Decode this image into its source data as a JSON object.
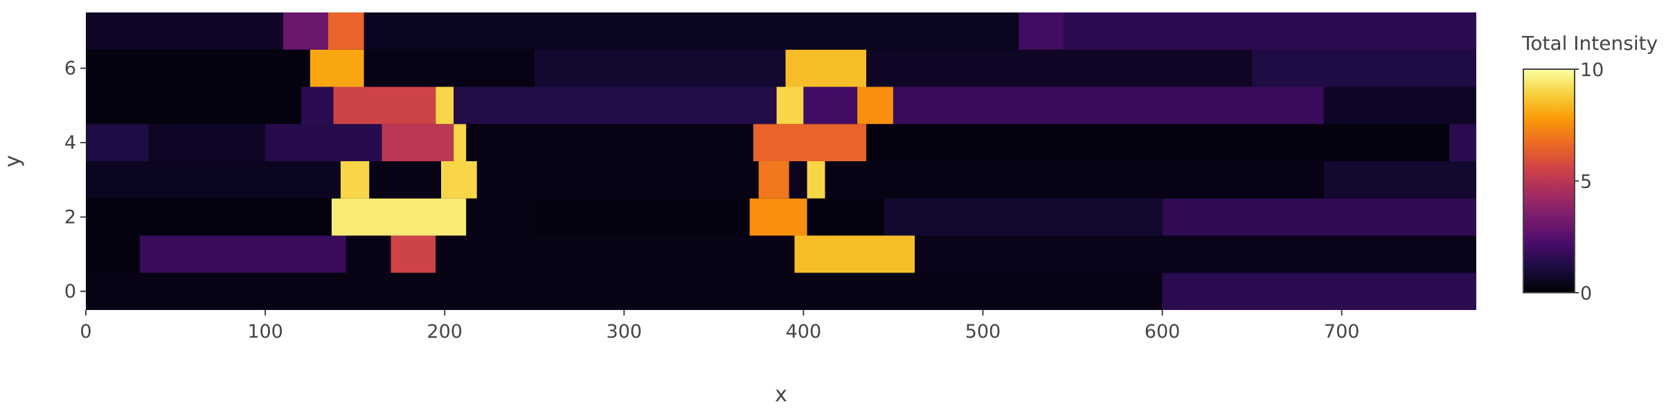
{
  "chart_data": {
    "type": "heatmap",
    "title": "",
    "xlabel": "x",
    "ylabel": "y",
    "xlim": [
      0,
      775
    ],
    "ylim": [
      -0.5,
      7.5
    ],
    "x_ticks": [
      0,
      100,
      200,
      300,
      400,
      500,
      600,
      700
    ],
    "y_ticks": [
      0,
      2,
      4,
      6
    ],
    "colorbar": {
      "title": "Total Intensity",
      "min": 0,
      "max": 10,
      "ticks": [
        0,
        5,
        10
      ]
    },
    "colorscale": [
      "#000004",
      "#1b0c41",
      "#4a0c6b",
      "#781c6d",
      "#a52c60",
      "#cf4446",
      "#ed6925",
      "#fb9b06",
      "#f7d13d",
      "#fcffa4"
    ],
    "rows": [
      {
        "y": 0,
        "segments": [
          [
            0,
            600,
            0.3
          ],
          [
            600,
            775,
            1.5
          ]
        ]
      },
      {
        "y": 1,
        "segments": [
          [
            0,
            30,
            0.2
          ],
          [
            30,
            145,
            1.8
          ],
          [
            145,
            170,
            0.3
          ],
          [
            170,
            195,
            5.5
          ],
          [
            195,
            395,
            0.3
          ],
          [
            395,
            462,
            8.5
          ],
          [
            462,
            775,
            0.4
          ]
        ]
      },
      {
        "y": 2,
        "segments": [
          [
            0,
            137,
            0.2
          ],
          [
            137,
            212,
            9.5
          ],
          [
            212,
            250,
            0.3
          ],
          [
            250,
            370,
            0.2
          ],
          [
            370,
            402,
            7.5
          ],
          [
            402,
            445,
            0.2
          ],
          [
            445,
            600,
            0.8
          ],
          [
            600,
            775,
            1.6
          ]
        ]
      },
      {
        "y": 3,
        "segments": [
          [
            0,
            142,
            0.5
          ],
          [
            142,
            158,
            9.0
          ],
          [
            158,
            198,
            0.3
          ],
          [
            198,
            218,
            9.0
          ],
          [
            218,
            375,
            0.3
          ],
          [
            375,
            392,
            7.0
          ],
          [
            392,
            402,
            0.5
          ],
          [
            402,
            412,
            9.0
          ],
          [
            412,
            690,
            0.3
          ],
          [
            690,
            775,
            0.8
          ]
        ]
      },
      {
        "y": 4,
        "segments": [
          [
            0,
            35,
            1.2
          ],
          [
            35,
            100,
            0.6
          ],
          [
            100,
            165,
            1.4
          ],
          [
            165,
            205,
            5.0
          ],
          [
            205,
            212,
            9.0
          ],
          [
            212,
            372,
            0.3
          ],
          [
            372,
            435,
            6.5
          ],
          [
            435,
            760,
            0.2
          ],
          [
            760,
            775,
            1.5
          ]
        ]
      },
      {
        "y": 5,
        "segments": [
          [
            0,
            120,
            0.2
          ],
          [
            120,
            138,
            1.5
          ],
          [
            138,
            195,
            5.5
          ],
          [
            195,
            205,
            9.0
          ],
          [
            205,
            385,
            1.3
          ],
          [
            385,
            400,
            9.0
          ],
          [
            400,
            430,
            2.0
          ],
          [
            430,
            450,
            7.5
          ],
          [
            450,
            690,
            1.8
          ],
          [
            690,
            775,
            0.6
          ]
        ]
      },
      {
        "y": 6,
        "segments": [
          [
            0,
            125,
            0.2
          ],
          [
            125,
            155,
            8.0
          ],
          [
            155,
            250,
            0.3
          ],
          [
            250,
            390,
            0.8
          ],
          [
            390,
            435,
            8.5
          ],
          [
            435,
            650,
            0.6
          ],
          [
            650,
            775,
            1.2
          ]
        ]
      },
      {
        "y": 7,
        "segments": [
          [
            0,
            110,
            0.6
          ],
          [
            110,
            135,
            3.0
          ],
          [
            135,
            155,
            6.5
          ],
          [
            155,
            520,
            0.5
          ],
          [
            520,
            545,
            2.0
          ],
          [
            545,
            775,
            1.5
          ]
        ]
      }
    ]
  }
}
